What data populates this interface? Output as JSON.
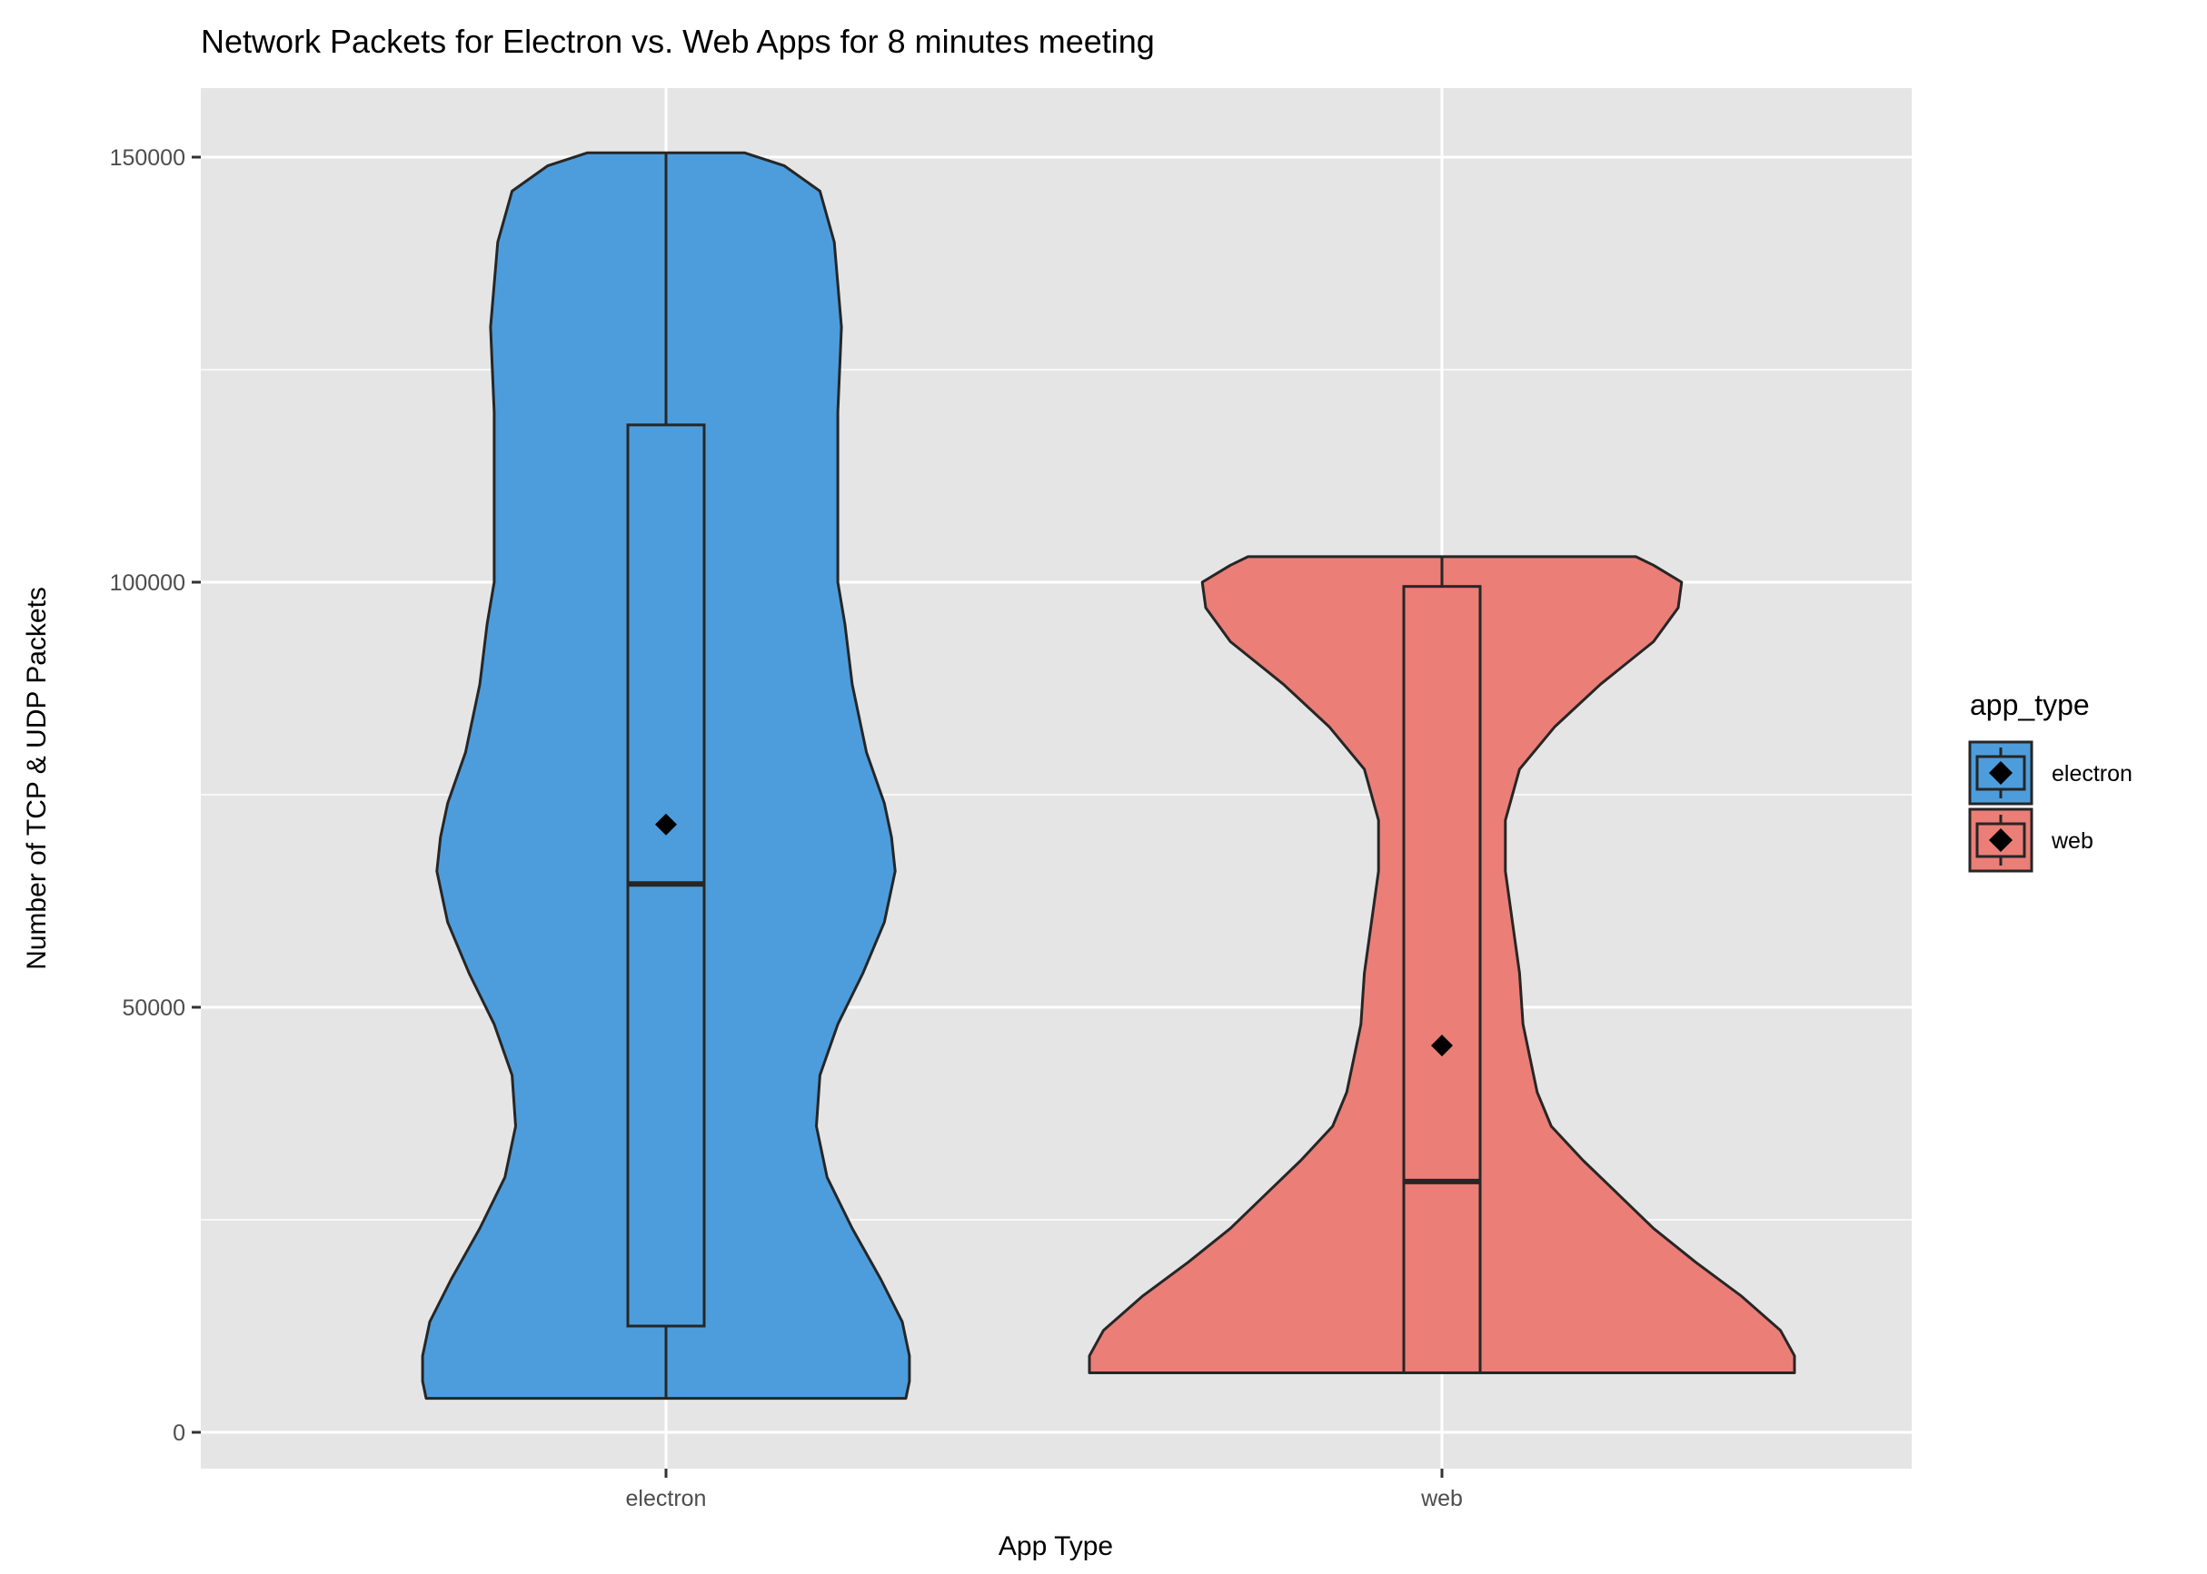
{
  "chart_data": {
    "type": "violin",
    "title": "Network Packets for Electron vs. Web Apps for 8 minutes meeting",
    "xlabel": "App Type",
    "ylabel": "Number of TCP & UDP Packets",
    "categories": [
      "electron",
      "web"
    ],
    "ylim": [
      -5000,
      158000
    ],
    "y_ticks": [
      0,
      50000,
      100000,
      150000
    ],
    "y_tick_labels": [
      "0",
      "50000",
      "100000",
      "150000"
    ],
    "grid": true,
    "legend": {
      "title": "app_type",
      "position": "right",
      "entries": [
        "electron",
        "web"
      ]
    },
    "series": [
      {
        "name": "electron",
        "color": "#4d9ddc",
        "min": 4000,
        "q1": 12500,
        "median": 64500,
        "q3": 118500,
        "max": 150500,
        "mean": 71500,
        "density": [
          [
            4000,
            0.67
          ],
          [
            6000,
            0.68
          ],
          [
            9000,
            0.68
          ],
          [
            13000,
            0.66
          ],
          [
            18000,
            0.6
          ],
          [
            24000,
            0.52
          ],
          [
            30000,
            0.45
          ],
          [
            36000,
            0.42
          ],
          [
            42000,
            0.43
          ],
          [
            48000,
            0.48
          ],
          [
            54000,
            0.55
          ],
          [
            60000,
            0.61
          ],
          [
            66000,
            0.64
          ],
          [
            70000,
            0.63
          ],
          [
            74000,
            0.61
          ],
          [
            80000,
            0.56
          ],
          [
            88000,
            0.52
          ],
          [
            95000,
            0.5
          ],
          [
            100000,
            0.48
          ],
          [
            110000,
            0.48
          ],
          [
            120000,
            0.48
          ],
          [
            130000,
            0.49
          ],
          [
            140000,
            0.47
          ],
          [
            146000,
            0.43
          ],
          [
            149000,
            0.33
          ],
          [
            150500,
            0.22
          ]
        ]
      },
      {
        "name": "web",
        "color": "#eb7e77",
        "min": 7000,
        "q1": 7000,
        "median": 29500,
        "q3": 99500,
        "max": 103000,
        "mean": 45500,
        "density": [
          [
            7000,
            1.0
          ],
          [
            9000,
            1.0
          ],
          [
            12000,
            0.96
          ],
          [
            16000,
            0.85
          ],
          [
            20000,
            0.72
          ],
          [
            24000,
            0.6
          ],
          [
            28000,
            0.5
          ],
          [
            32000,
            0.4
          ],
          [
            36000,
            0.31
          ],
          [
            40000,
            0.27
          ],
          [
            44000,
            0.25
          ],
          [
            48000,
            0.23
          ],
          [
            54000,
            0.22
          ],
          [
            60000,
            0.2
          ],
          [
            66000,
            0.18
          ],
          [
            72000,
            0.18
          ],
          [
            78000,
            0.22
          ],
          [
            83000,
            0.32
          ],
          [
            88000,
            0.45
          ],
          [
            93000,
            0.6
          ],
          [
            97000,
            0.67
          ],
          [
            100000,
            0.68
          ],
          [
            102000,
            0.6
          ],
          [
            103000,
            0.55
          ]
        ]
      }
    ]
  }
}
